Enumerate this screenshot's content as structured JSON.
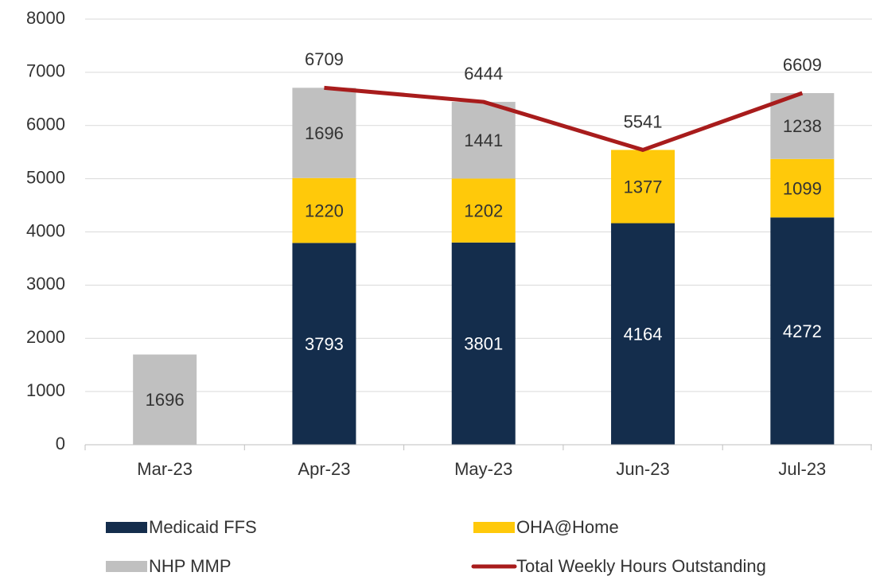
{
  "chart_data": {
    "type": "bar",
    "stacked": true,
    "categories": [
      "Mar-23",
      "Apr-23",
      "May-23",
      "Jun-23",
      "Jul-23"
    ],
    "series": [
      {
        "name": "Medicaid FFS",
        "color": "#142d4c",
        "values": [
          null,
          3793,
          3801,
          4164,
          4272
        ]
      },
      {
        "name": "OHA@Home",
        "color": "#ffc90a",
        "values": [
          null,
          1220,
          1202,
          1377,
          1099
        ]
      },
      {
        "name": "NHP MMP",
        "color": "#c0c0c0",
        "values": [
          1696,
          1696,
          1441,
          null,
          1238
        ]
      },
      {
        "name": "Total Weekly Hours Outstanding",
        "color": "#a81c1c",
        "type": "line",
        "values": [
          null,
          6709,
          6444,
          5541,
          6609
        ]
      }
    ],
    "ylim": [
      0,
      8000
    ],
    "yticks": [
      0,
      1000,
      2000,
      3000,
      4000,
      5000,
      6000,
      7000,
      8000
    ],
    "grid": true,
    "legend": "bottom"
  }
}
